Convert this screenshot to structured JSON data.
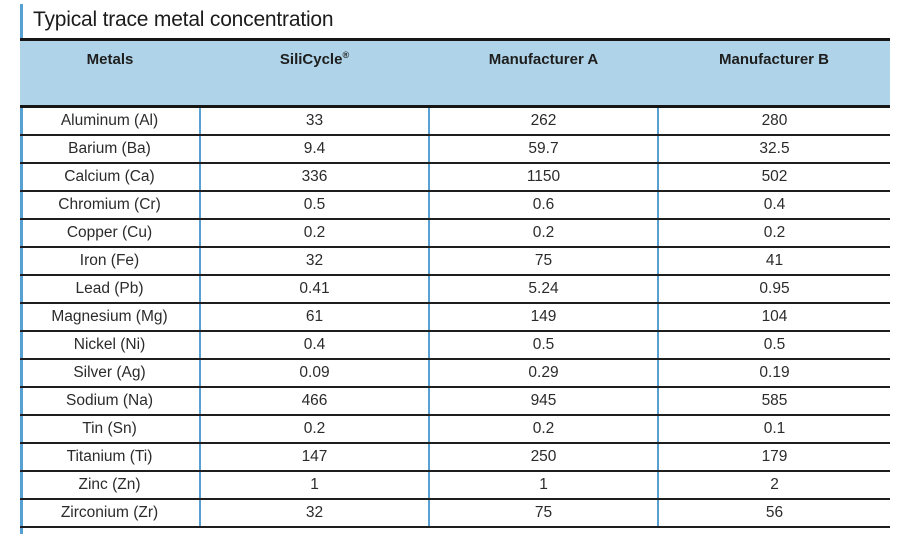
{
  "page": {
    "title": "Typical trace metal concentration"
  },
  "colors": {
    "accent_blue": "#56a0d2",
    "header_background": "#afd3e8",
    "rule_dark": "#1e1e1e"
  },
  "table": {
    "columns": [
      {
        "label": "Metals"
      },
      {
        "label": "SiliCycle",
        "mark": "®"
      },
      {
        "label": "Manufacturer A"
      },
      {
        "label": "Manufacturer B"
      }
    ],
    "rows": [
      {
        "metal": "Aluminum (Al)",
        "silicycle": "33",
        "manufacturer_a": "262",
        "manufacturer_b": "280"
      },
      {
        "metal": "Barium (Ba)",
        "silicycle": "9.4",
        "manufacturer_a": "59.7",
        "manufacturer_b": "32.5"
      },
      {
        "metal": "Calcium (Ca)",
        "silicycle": "336",
        "manufacturer_a": "1150",
        "manufacturer_b": "502"
      },
      {
        "metal": "Chromium (Cr)",
        "silicycle": "0.5",
        "manufacturer_a": "0.6",
        "manufacturer_b": "0.4"
      },
      {
        "metal": "Copper (Cu)",
        "silicycle": "0.2",
        "manufacturer_a": "0.2",
        "manufacturer_b": "0.2"
      },
      {
        "metal": "Iron (Fe)",
        "silicycle": "32",
        "manufacturer_a": "75",
        "manufacturer_b": "41"
      },
      {
        "metal": "Lead (Pb)",
        "silicycle": "0.41",
        "manufacturer_a": "5.24",
        "manufacturer_b": "0.95"
      },
      {
        "metal": "Magnesium (Mg)",
        "silicycle": "61",
        "manufacturer_a": "149",
        "manufacturer_b": "104"
      },
      {
        "metal": "Nickel (Ni)",
        "silicycle": "0.4",
        "manufacturer_a": "0.5",
        "manufacturer_b": "0.5"
      },
      {
        "metal": "Silver (Ag)",
        "silicycle": "0.09",
        "manufacturer_a": "0.29",
        "manufacturer_b": "0.19"
      },
      {
        "metal": "Sodium (Na)",
        "silicycle": "466",
        "manufacturer_a": "945",
        "manufacturer_b": "585"
      },
      {
        "metal": "Tin (Sn)",
        "silicycle": "0.2",
        "manufacturer_a": "0.2",
        "manufacturer_b": "0.1"
      },
      {
        "metal": "Titanium (Ti)",
        "silicycle": "147",
        "manufacturer_a": "250",
        "manufacturer_b": "179"
      },
      {
        "metal": "Zinc (Zn)",
        "silicycle": "1",
        "manufacturer_a": "1",
        "manufacturer_b": "2"
      },
      {
        "metal": "Zirconium (Zr)",
        "silicycle": "32",
        "manufacturer_a": "75",
        "manufacturer_b": "56"
      }
    ]
  }
}
